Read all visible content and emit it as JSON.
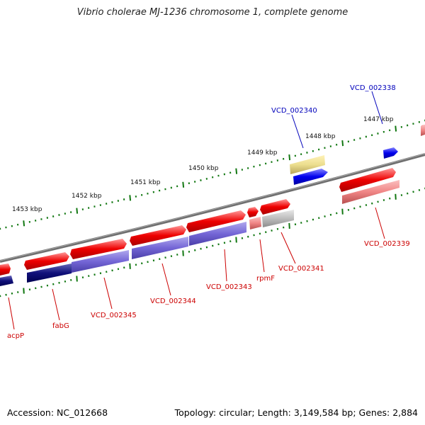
{
  "title": "Vibrio cholerae MJ-1236 chromosome 1, complete genome",
  "footer": {
    "accession": "Accession: NC_012668",
    "topology": "Topology: circular; Length: 3,149,584 bp; Genes: 2,884"
  },
  "ruler": [
    {
      "label": "1453 kbp",
      "kbp": 1453
    },
    {
      "label": "1452 kbp",
      "kbp": 1452
    },
    {
      "label": "1451 kbp",
      "kbp": 1451
    },
    {
      "label": "1450 kbp",
      "kbp": 1450
    },
    {
      "label": "1449 kbp",
      "kbp": 1449
    },
    {
      "label": "1448 kbp",
      "kbp": 1448
    },
    {
      "label": "1447 kbp",
      "kbp": 1447
    }
  ],
  "gene_labels": [
    {
      "text": "VCD_002338",
      "color": "#0000bb"
    },
    {
      "text": "VCD_002340",
      "color": "#0000bb"
    },
    {
      "text": "VCD_002339",
      "color": "#cc0000"
    },
    {
      "text": "VCD_002341",
      "color": "#cc0000"
    },
    {
      "text": "rpmF",
      "color": "#cc0000"
    },
    {
      "text": "VCD_002343",
      "color": "#cc0000"
    },
    {
      "text": "VCD_002344",
      "color": "#cc0000"
    },
    {
      "text": "VCD_002345",
      "color": "#cc0000"
    },
    {
      "text": "fabG",
      "color": "#cc0000"
    },
    {
      "text": "acpP",
      "color": "#cc0000"
    }
  ],
  "colors": {
    "backbone": "#7a7a7a",
    "forward_cds": "#ee0000",
    "reverse_cds": "#0000ee",
    "tick": "#117711"
  }
}
